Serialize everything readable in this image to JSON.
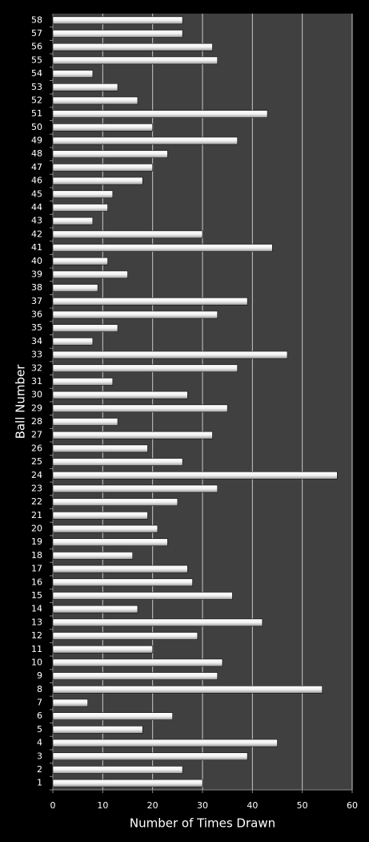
{
  "chart_data": {
    "type": "barh",
    "categories": [
      "1",
      "2",
      "3",
      "4",
      "5",
      "6",
      "7",
      "8",
      "9",
      "10",
      "11",
      "12",
      "13",
      "14",
      "15",
      "16",
      "17",
      "18",
      "19",
      "20",
      "21",
      "22",
      "23",
      "24",
      "25",
      "26",
      "27",
      "28",
      "29",
      "30",
      "31",
      "32",
      "33",
      "34",
      "35",
      "36",
      "37",
      "38",
      "39",
      "40",
      "41",
      "42",
      "43",
      "44",
      "45",
      "46",
      "47",
      "48",
      "49",
      "50",
      "51",
      "52",
      "53",
      "54",
      "55",
      "56",
      "57",
      "58"
    ],
    "values": [
      30,
      26,
      39,
      45,
      18,
      24,
      7,
      54,
      33,
      34,
      20,
      29,
      42,
      17,
      36,
      28,
      27,
      16,
      23,
      21,
      19,
      25,
      33,
      57,
      26,
      19,
      32,
      13,
      35,
      27,
      12,
      37,
      47,
      8,
      13,
      33,
      39,
      9,
      15,
      11,
      44,
      30,
      8,
      11,
      12,
      18,
      20,
      23,
      37,
      20,
      43,
      17,
      13,
      8,
      33,
      32,
      26,
      26
    ],
    "color": "#e8e8e8",
    "xlabel": "Number of Times Drawn",
    "ylabel": "Ball Number",
    "xlim": [
      0,
      60
    ],
    "xticks": [
      0,
      10,
      20,
      30,
      40,
      50,
      60
    ],
    "grid": true
  }
}
